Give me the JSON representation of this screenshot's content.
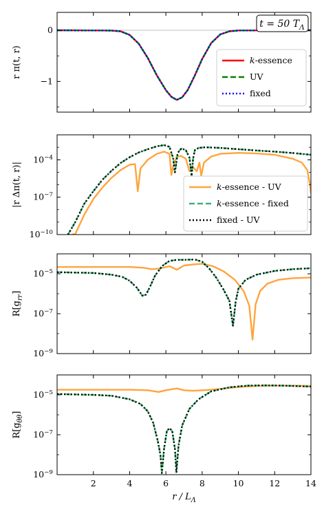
{
  "chart_data": [
    {
      "type": "line",
      "panel": "field",
      "ylabel": "r π(t, r)",
      "xlim": [
        0,
        14
      ],
      "ylim": [
        -1.6,
        0.35
      ],
      "yscale": "linear",
      "yticks": [
        {
          "value": 0,
          "label": "0"
        },
        {
          "value": -1,
          "label": "−1"
        }
      ],
      "hline": 0,
      "annotation": "t = 50 T_Λ",
      "legend": "right",
      "series": [
        {
          "name": "k-essence",
          "color": "#ff0000",
          "style": "solid",
          "x": [
            0.0,
            3.0,
            3.5,
            4.0,
            4.5,
            5.0,
            5.5,
            6.0,
            6.3,
            6.6,
            6.9,
            7.2,
            7.6,
            8.0,
            8.5,
            9.0,
            9.5,
            10.0,
            14.0
          ],
          "y": [
            0.0,
            -0.005,
            -0.02,
            -0.09,
            -0.26,
            -0.54,
            -0.88,
            -1.17,
            -1.3,
            -1.36,
            -1.31,
            -1.17,
            -0.88,
            -0.56,
            -0.25,
            -0.08,
            -0.02,
            -0.004,
            0.0
          ]
        },
        {
          "name": "UV",
          "color": "#008000",
          "style": "dashed",
          "x": [
            0.0,
            3.0,
            3.5,
            4.0,
            4.5,
            5.0,
            5.5,
            6.0,
            6.3,
            6.6,
            6.9,
            7.2,
            7.6,
            8.0,
            8.5,
            9.0,
            9.5,
            10.0,
            14.0
          ],
          "y": [
            0.0,
            -0.005,
            -0.02,
            -0.09,
            -0.26,
            -0.54,
            -0.88,
            -1.17,
            -1.3,
            -1.36,
            -1.31,
            -1.17,
            -0.88,
            -0.56,
            -0.25,
            -0.08,
            -0.02,
            -0.004,
            0.0
          ]
        },
        {
          "name": "fixed",
          "color": "#0000ff",
          "style": "dotted",
          "x": [
            0.0,
            3.0,
            3.5,
            4.0,
            4.5,
            5.0,
            5.5,
            6.0,
            6.3,
            6.6,
            6.9,
            7.2,
            7.6,
            8.0,
            8.5,
            9.0,
            9.5,
            10.0,
            14.0
          ],
          "y": [
            0.0,
            -0.005,
            -0.02,
            -0.09,
            -0.26,
            -0.54,
            -0.88,
            -1.17,
            -1.3,
            -1.36,
            -1.31,
            -1.17,
            -0.88,
            -0.56,
            -0.25,
            -0.08,
            -0.02,
            -0.004,
            0.0
          ]
        }
      ]
    },
    {
      "type": "line",
      "panel": "difference",
      "ylabel": "|r Δπ(t, r)|",
      "xlim": [
        0,
        14
      ],
      "ylim": [
        1e-10,
        0.01
      ],
      "yscale": "log",
      "yticks": [
        {
          "value": 0.0001,
          "label": "10^-4"
        },
        {
          "value": 1e-07,
          "label": "10^-7"
        },
        {
          "value": 1e-10,
          "label": "10^-10"
        }
      ],
      "legend": "lower-right",
      "series": [
        {
          "name": "k-essence - UV",
          "color": "#ffa43c",
          "style": "solid",
          "x": [
            0.8,
            1.0,
            1.5,
            2.0,
            2.5,
            3.0,
            3.5,
            4.0,
            4.3,
            4.45,
            4.6,
            5.0,
            5.5,
            5.9,
            6.2,
            6.3,
            6.42,
            6.6,
            6.85,
            7.1,
            7.3,
            7.5,
            7.7,
            7.85,
            7.95,
            8.1,
            8.5,
            9.0,
            10.0,
            11.0,
            12.0,
            13.0,
            13.5,
            13.8,
            13.95,
            14.0
          ],
          "y": [
            1e-10,
            1.1e-10,
            4e-09,
            7e-08,
            6e-07,
            3.5e-06,
            1.5e-05,
            4e-05,
            4.5e-05,
            3e-07,
            2e-05,
            0.0001,
            0.0003,
            0.00045,
            0.0003,
            6e-06,
            4e-05,
            0.00018,
            0.0002,
            0.00012,
            1.2e-05,
            2.5e-05,
            1.2e-05,
            6e-05,
            5e-06,
            6e-05,
            0.00018,
            0.0003,
            0.00036,
            0.00032,
            0.00025,
            0.00012,
            6e-05,
            1.5e-05,
            1e-06,
            2e-07
          ]
        },
        {
          "name": "k-essence - fixed",
          "color": "#3cb371",
          "style": "dashed",
          "x": [
            0.6,
            1.0,
            1.5,
            2.0,
            2.5,
            3.0,
            3.5,
            4.0,
            4.5,
            5.0,
            5.5,
            5.9,
            6.2,
            6.4,
            6.5,
            6.55,
            6.65,
            6.85,
            7.1,
            7.3,
            7.42,
            7.5,
            7.6,
            7.8,
            8.2,
            9.0,
            10.0,
            11.0,
            12.0,
            13.0,
            14.0
          ],
          "y": [
            1e-10,
            1e-09,
            3e-08,
            3e-07,
            2.5e-06,
            1.3e-05,
            5.5e-05,
            0.00016,
            0.00038,
            0.0007,
            0.0012,
            0.0015,
            0.0011,
            0.00013,
            1e-05,
            3e-05,
            0.00035,
            0.0008,
            0.0006,
            0.00015,
            5e-06,
            0.00012,
            0.0006,
            0.0009,
            0.001,
            0.0009,
            0.0007,
            0.00055,
            0.00045,
            0.00035,
            0.00025
          ]
        },
        {
          "name": "fixed - UV",
          "color": "#000000",
          "style": "dotted",
          "x": [
            0.6,
            1.0,
            1.5,
            2.0,
            2.5,
            3.0,
            3.5,
            4.0,
            4.5,
            5.0,
            5.5,
            5.9,
            6.2,
            6.4,
            6.5,
            6.55,
            6.65,
            6.85,
            7.1,
            7.3,
            7.42,
            7.5,
            7.6,
            7.8,
            8.2,
            9.0,
            10.0,
            11.0,
            12.0,
            13.0,
            14.0
          ],
          "y": [
            1e-10,
            1e-09,
            3e-08,
            3e-07,
            2.5e-06,
            1.3e-05,
            5.5e-05,
            0.00016,
            0.00038,
            0.0007,
            0.0012,
            0.0015,
            0.0011,
            0.00013,
            1e-05,
            3e-05,
            0.00035,
            0.0008,
            0.0006,
            0.00015,
            5e-06,
            0.00012,
            0.0006,
            0.0009,
            0.001,
            0.0009,
            0.0007,
            0.00055,
            0.00045,
            0.00035,
            0.00025
          ]
        }
      ]
    },
    {
      "type": "line",
      "panel": "grr",
      "ylabel": "R[g_rr]",
      "xlim": [
        0,
        14
      ],
      "ylim": [
        1e-09,
        0.0001
      ],
      "yscale": "log",
      "yticks": [
        {
          "value": 1e-05,
          "label": "10^-5"
        },
        {
          "value": 1e-07,
          "label": "10^-7"
        },
        {
          "value": 1e-09,
          "label": "10^-9"
        }
      ],
      "series": [
        {
          "name": "k-essence - UV",
          "color": "#ffa43c",
          "style": "solid",
          "x": [
            0.0,
            2.0,
            4.0,
            4.8,
            5.2,
            5.6,
            6.2,
            6.6,
            7.0,
            7.6,
            8.0,
            8.6,
            9.2,
            9.8,
            10.3,
            10.6,
            10.78,
            10.95,
            11.2,
            11.6,
            12.2,
            13.0,
            14.0
          ],
          "y": [
            2.2e-05,
            2.2e-05,
            2.2e-05,
            2e-05,
            1.7e-05,
            1.8e-05,
            2.4e-05,
            1.6e-05,
            2.6e-05,
            3e-05,
            3.2e-05,
            2.4e-05,
            1.3e-05,
            5e-06,
            1.3e-06,
            2.5e-07,
            5e-09,
            3e-07,
            1.4e-06,
            3.2e-06,
            5e-06,
            6e-06,
            6.5e-06
          ]
        },
        {
          "name": "k-essence - fixed",
          "color": "#3cb371",
          "style": "dashed",
          "x": [
            0.0,
            2.0,
            3.0,
            3.6,
            4.0,
            4.4,
            4.7,
            4.9,
            5.1,
            5.4,
            5.8,
            6.2,
            6.6,
            7.0,
            7.6,
            8.0,
            8.4,
            8.8,
            9.2,
            9.5,
            9.7,
            9.85,
            10.0,
            10.4,
            11.0,
            12.0,
            13.0,
            14.0
          ],
          "y": [
            1.2e-05,
            1.1e-05,
            9e-06,
            7e-06,
            4.5e-06,
            2e-06,
            8e-07,
            9e-07,
            2e-06,
            8e-06,
            2.5e-05,
            4.4e-05,
            5e-05,
            5e-05,
            5.2e-05,
            4e-05,
            1.8e-05,
            6e-06,
            1.5e-06,
            4.5e-07,
            2.5e-08,
            4e-07,
            1.8e-06,
            5e-06,
            9e-06,
            1.4e-05,
            1.7e-05,
            1.9e-05
          ]
        },
        {
          "name": "fixed - UV",
          "color": "#000000",
          "style": "dotted",
          "x": [
            0.0,
            2.0,
            3.0,
            3.6,
            4.0,
            4.4,
            4.7,
            4.9,
            5.1,
            5.4,
            5.8,
            6.2,
            6.6,
            7.0,
            7.6,
            8.0,
            8.4,
            8.8,
            9.2,
            9.5,
            9.7,
            9.85,
            10.0,
            10.4,
            11.0,
            12.0,
            13.0,
            14.0
          ],
          "y": [
            1.2e-05,
            1.1e-05,
            9e-06,
            7e-06,
            4.5e-06,
            2e-06,
            8e-07,
            9e-07,
            2e-06,
            8e-06,
            2.5e-05,
            4.4e-05,
            5e-05,
            5e-05,
            5.2e-05,
            4e-05,
            1.8e-05,
            6e-06,
            1.5e-06,
            4.5e-07,
            2.5e-08,
            4e-07,
            1.8e-06,
            5e-06,
            9e-06,
            1.4e-05,
            1.7e-05,
            1.9e-05
          ]
        }
      ]
    },
    {
      "type": "line",
      "panel": "gthth",
      "ylabel": "R[g_θθ]",
      "xlabel": "r / L_Λ",
      "xlim": [
        0,
        14
      ],
      "ylim": [
        1e-09,
        0.0001
      ],
      "yscale": "log",
      "yticks": [
        {
          "value": 1e-05,
          "label": "10^-5"
        },
        {
          "value": 1e-07,
          "label": "10^-7"
        },
        {
          "value": 1e-09,
          "label": "10^-9"
        }
      ],
      "xticks": [
        2,
        4,
        6,
        8,
        10,
        12,
        14
      ],
      "series": [
        {
          "name": "k-essence - UV",
          "color": "#ffa43c",
          "style": "solid",
          "x": [
            0.0,
            2.0,
            4.0,
            5.0,
            5.6,
            6.0,
            6.3,
            6.6,
            7.0,
            7.5,
            8.0,
            8.5,
            9.0,
            10.0,
            11.0,
            12.0,
            13.0,
            14.0
          ],
          "y": [
            1.8e-05,
            1.8e-05,
            1.8e-05,
            1.7e-05,
            1.4e-05,
            1.7e-05,
            1.9e-05,
            2.1e-05,
            1.7e-05,
            1.6e-05,
            1.7e-05,
            1.8e-05,
            2e-05,
            2.5e-05,
            2.8e-05,
            2.9e-05,
            2.9e-05,
            2.8e-05
          ]
        },
        {
          "name": "k-essence - fixed",
          "color": "#3cb371",
          "style": "dashed",
          "x": [
            0.0,
            2.0,
            3.0,
            4.0,
            4.6,
            5.0,
            5.3,
            5.55,
            5.7,
            5.78,
            5.9,
            6.05,
            6.2,
            6.35,
            6.5,
            6.58,
            6.7,
            6.9,
            7.3,
            7.8,
            8.5,
            9.5,
            10.5,
            11.5,
            12.5,
            14.0
          ],
          "y": [
            1.1e-05,
            1e-05,
            9e-06,
            6e-06,
            3.5e-06,
            1.5e-06,
            4e-07,
            5e-08,
            1e-08,
            1.2e-09,
            2e-08,
            1.5e-07,
            2.2e-07,
            1.5e-07,
            2e-08,
            1.3e-09,
            3e-08,
            3e-07,
            2e-06,
            6e-06,
            1.5e-05,
            2.4e-05,
            2.9e-05,
            3e-05,
            2.9e-05,
            2.6e-05
          ]
        },
        {
          "name": "fixed - UV",
          "color": "#000000",
          "style": "dotted",
          "x": [
            0.0,
            2.0,
            3.0,
            4.0,
            4.6,
            5.0,
            5.3,
            5.55,
            5.7,
            5.78,
            5.9,
            6.05,
            6.2,
            6.35,
            6.5,
            6.58,
            6.7,
            6.9,
            7.3,
            7.8,
            8.5,
            9.5,
            10.5,
            11.5,
            12.5,
            14.0
          ],
          "y": [
            1.1e-05,
            1e-05,
            9e-06,
            6e-06,
            3.5e-06,
            1.5e-06,
            4e-07,
            5e-08,
            1e-08,
            1.2e-09,
            2e-08,
            1.5e-07,
            2.2e-07,
            1.5e-07,
            2e-08,
            1.3e-09,
            3e-08,
            3e-07,
            2e-06,
            6e-06,
            1.5e-05,
            2.4e-05,
            2.9e-05,
            3e-05,
            2.9e-05,
            2.6e-05
          ]
        }
      ]
    }
  ]
}
